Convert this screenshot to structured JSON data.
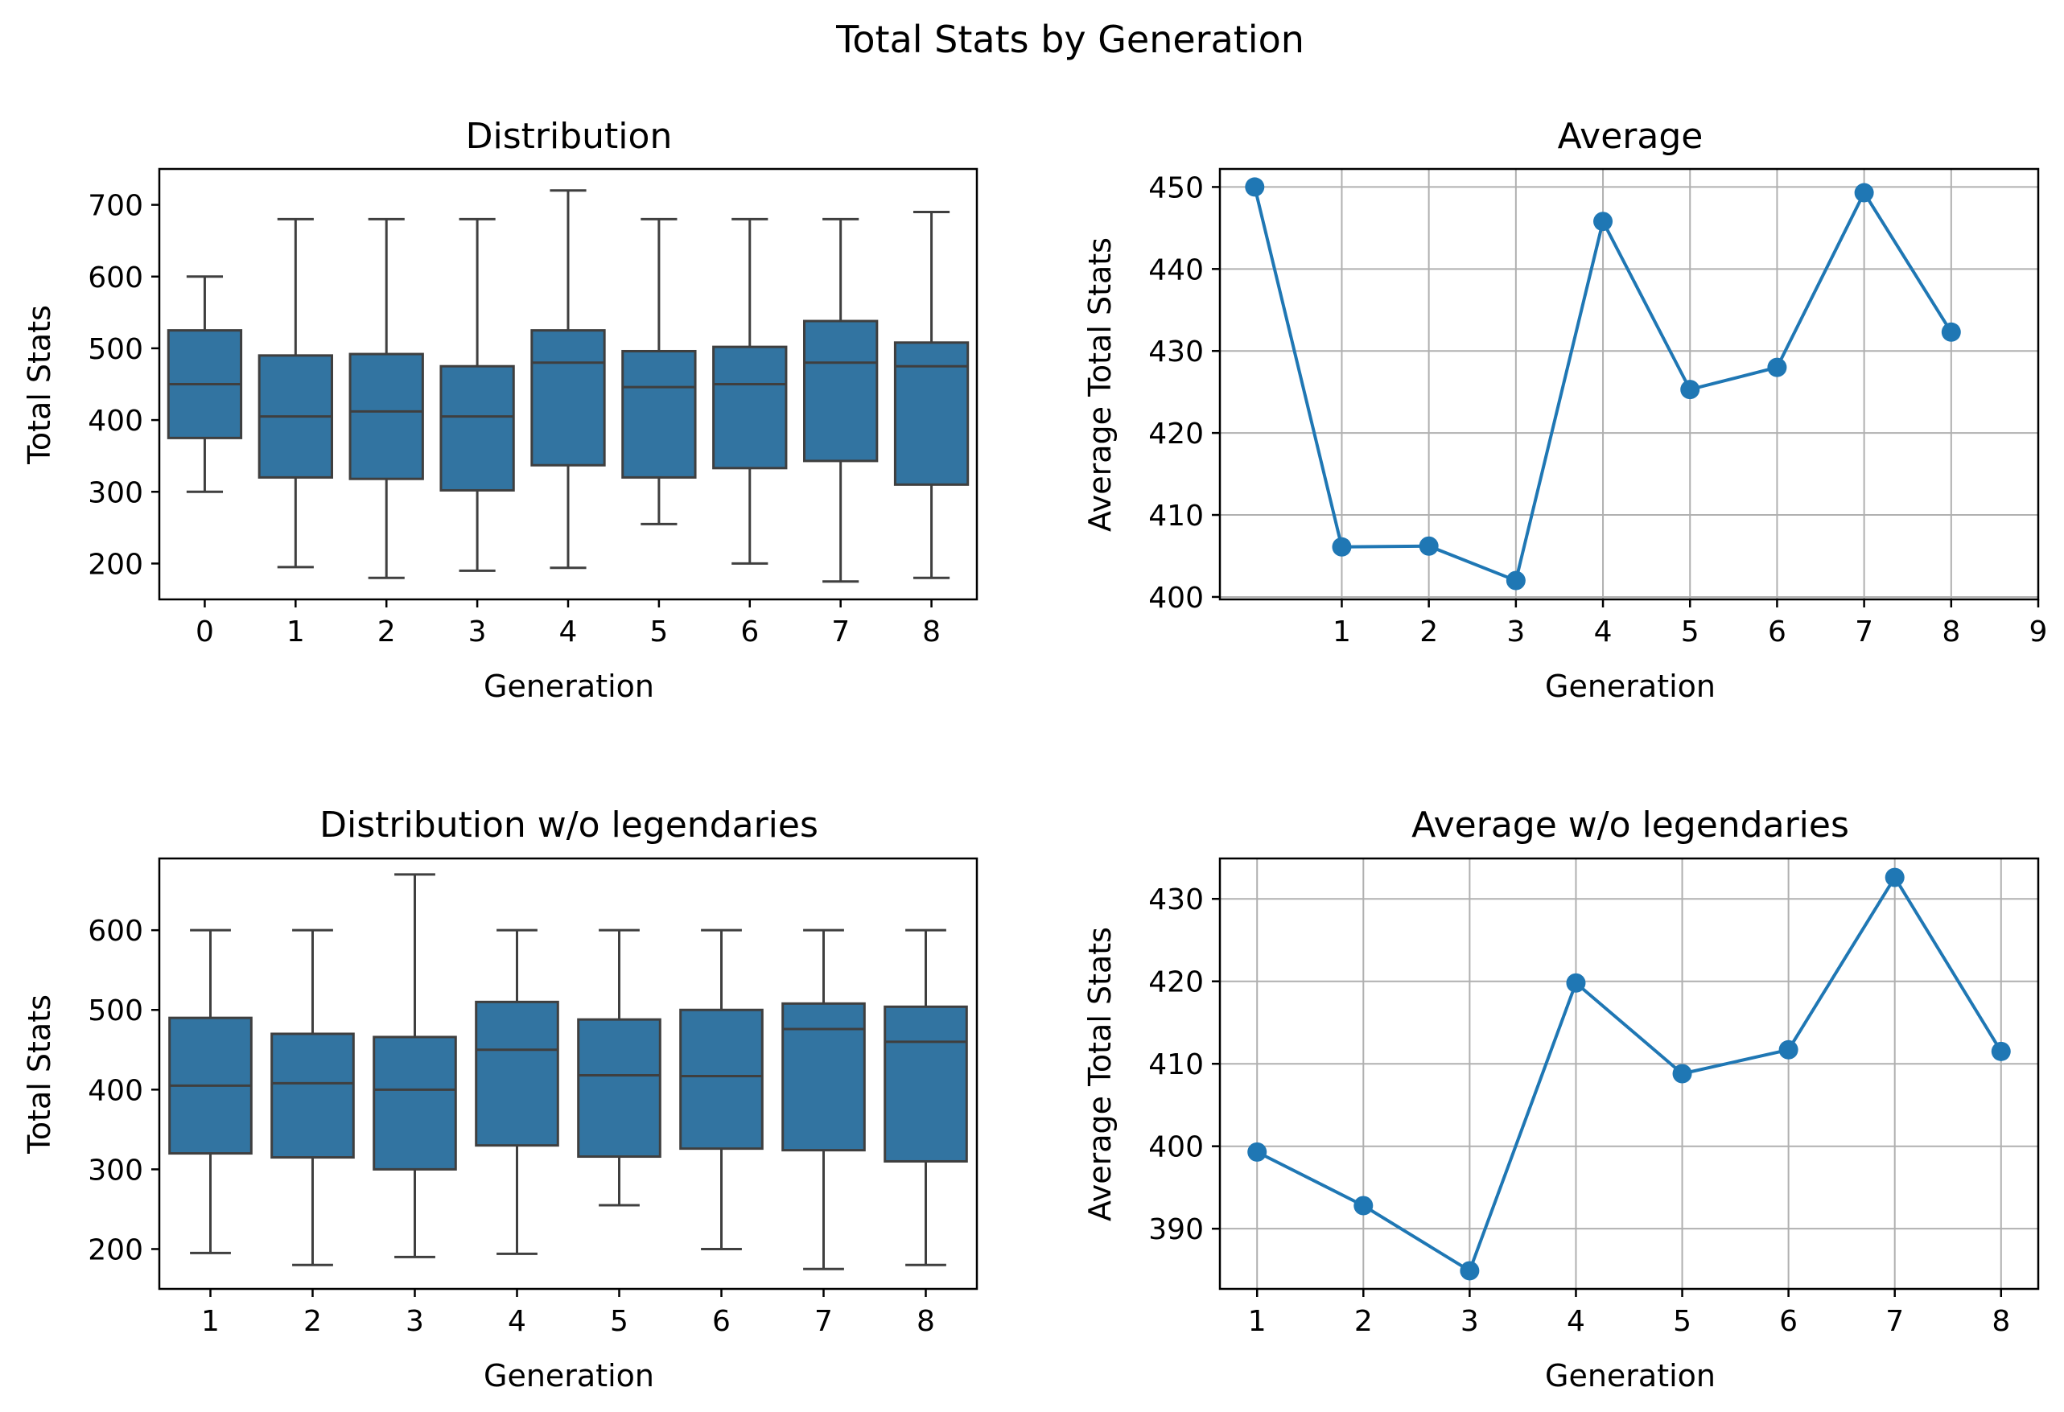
{
  "figure": {
    "title": "Total Stats by Generation"
  },
  "colors": {
    "box_fill": "#3274a1",
    "box_edge": "#3f3f3f",
    "line": "#1f77b4",
    "grid": "#b0b0b0",
    "axes": "#000000"
  },
  "chart_data": [
    {
      "type": "box",
      "title": "Distribution",
      "xlabel": "Generation",
      "ylabel": "Total Stats",
      "ylim": [
        150,
        750
      ],
      "yticks": [
        200,
        300,
        400,
        500,
        600,
        700
      ],
      "grid": false,
      "categories": [
        "0",
        "1",
        "2",
        "3",
        "4",
        "5",
        "6",
        "7",
        "8"
      ],
      "boxes": [
        {
          "whisker_low": 300,
          "q1": 375,
          "median": 450,
          "q3": 525,
          "whisker_high": 600
        },
        {
          "whisker_low": 195,
          "q1": 320,
          "median": 405,
          "q3": 490,
          "whisker_high": 680
        },
        {
          "whisker_low": 180,
          "q1": 318,
          "median": 412,
          "q3": 492,
          "whisker_high": 680
        },
        {
          "whisker_low": 190,
          "q1": 302,
          "median": 405,
          "q3": 475,
          "whisker_high": 680
        },
        {
          "whisker_low": 194,
          "q1": 337,
          "median": 480,
          "q3": 525,
          "whisker_high": 720
        },
        {
          "whisker_low": 255,
          "q1": 320,
          "median": 446,
          "q3": 496,
          "whisker_high": 680
        },
        {
          "whisker_low": 200,
          "q1": 333,
          "median": 450,
          "q3": 502,
          "whisker_high": 680
        },
        {
          "whisker_low": 175,
          "q1": 343,
          "median": 480,
          "q3": 538,
          "whisker_high": 680
        },
        {
          "whisker_low": 180,
          "q1": 310,
          "median": 475,
          "q3": 508,
          "whisker_high": 690
        }
      ]
    },
    {
      "type": "line",
      "title": "Average",
      "xlabel": "Generation",
      "ylabel": "Average Total Stats",
      "xlim": [
        -0.4,
        9.0
      ],
      "ylim": [
        399.7,
        452.2
      ],
      "xticks": [
        1,
        2,
        3,
        4,
        5,
        6,
        7,
        8,
        9
      ],
      "yticks": [
        400,
        410,
        420,
        430,
        440,
        450
      ],
      "grid": true,
      "markers": true,
      "x": [
        0,
        1,
        2,
        3,
        4,
        5,
        6,
        7,
        8
      ],
      "y": [
        450.0,
        406.1,
        406.2,
        402.0,
        445.8,
        425.3,
        428.0,
        449.3,
        432.3
      ]
    },
    {
      "type": "box",
      "title": "Distribution w/o legendaries",
      "xlabel": "Generation",
      "ylabel": "Total Stats",
      "ylim": [
        150,
        690
      ],
      "yticks": [
        200,
        300,
        400,
        500,
        600
      ],
      "grid": false,
      "categories": [
        "1",
        "2",
        "3",
        "4",
        "5",
        "6",
        "7",
        "8"
      ],
      "boxes": [
        {
          "whisker_low": 195,
          "q1": 320,
          "median": 405,
          "q3": 490,
          "whisker_high": 600
        },
        {
          "whisker_low": 180,
          "q1": 315,
          "median": 408,
          "q3": 470,
          "whisker_high": 600
        },
        {
          "whisker_low": 190,
          "q1": 300,
          "median": 400,
          "q3": 466,
          "whisker_high": 670
        },
        {
          "whisker_low": 194,
          "q1": 330,
          "median": 450,
          "q3": 510,
          "whisker_high": 600
        },
        {
          "whisker_low": 255,
          "q1": 316,
          "median": 418,
          "q3": 488,
          "whisker_high": 600
        },
        {
          "whisker_low": 200,
          "q1": 326,
          "median": 417,
          "q3": 500,
          "whisker_high": 600
        },
        {
          "whisker_low": 175,
          "q1": 324,
          "median": 476,
          "q3": 508,
          "whisker_high": 600
        },
        {
          "whisker_low": 180,
          "q1": 310,
          "median": 460,
          "q3": 504,
          "whisker_high": 600
        }
      ]
    },
    {
      "type": "line",
      "title": "Average w/o legendaries",
      "xlabel": "Generation",
      "ylabel": "Average Total Stats",
      "xlim": [
        0.65,
        8.35
      ],
      "ylim": [
        382.7,
        434.9
      ],
      "xticks": [
        1,
        2,
        3,
        4,
        5,
        6,
        7,
        8
      ],
      "yticks": [
        390,
        400,
        410,
        420,
        430
      ],
      "grid": true,
      "markers": true,
      "x": [
        1,
        2,
        3,
        4,
        5,
        6,
        7,
        8
      ],
      "y": [
        399.3,
        392.8,
        384.9,
        419.8,
        408.8,
        411.7,
        432.6,
        411.5
      ]
    }
  ]
}
